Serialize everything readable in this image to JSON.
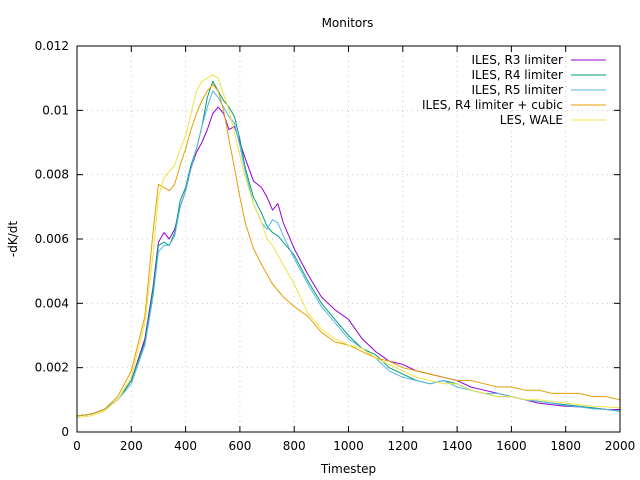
{
  "chart_data": {
    "type": "line",
    "title": "Monitors",
    "xlabel": "Timestep",
    "ylabel": "-dK/dt",
    "xlim": [
      0,
      2000
    ],
    "ylim": [
      0,
      0.012
    ],
    "xticks": [
      0,
      200,
      400,
      600,
      800,
      1000,
      1200,
      1400,
      1600,
      1800,
      2000
    ],
    "xtick_labels": [
      "0",
      "200",
      "400",
      "600",
      "800",
      "1000",
      "1200",
      "1400",
      "1600",
      "1800",
      "2000"
    ],
    "yticks": [
      0,
      0.002,
      0.004,
      0.006,
      0.008,
      0.01,
      0.012
    ],
    "ytick_labels": [
      "0",
      "0.002",
      "0.004",
      "0.006",
      "0.008",
      "0.01",
      "0.012"
    ],
    "grid": true,
    "legend_position": "top-right",
    "series": [
      {
        "name": "ILES, R3 limiter",
        "color": "#9400d3",
        "x": [
          0,
          50,
          100,
          150,
          200,
          250,
          280,
          300,
          320,
          340,
          360,
          380,
          400,
          420,
          440,
          460,
          480,
          500,
          520,
          540,
          560,
          580,
          600,
          620,
          650,
          680,
          700,
          720,
          740,
          760,
          800,
          850,
          900,
          950,
          1000,
          1050,
          1100,
          1150,
          1200,
          1250,
          1300,
          1350,
          1400,
          1450,
          1500,
          1550,
          1600,
          1650,
          1700,
          1750,
          1800,
          1850,
          1900,
          1950,
          2000
        ],
        "y": [
          0.0005,
          0.00055,
          0.0007,
          0.001,
          0.0016,
          0.0029,
          0.0045,
          0.0059,
          0.0062,
          0.006,
          0.0063,
          0.007,
          0.0075,
          0.0082,
          0.0087,
          0.009,
          0.0094,
          0.0099,
          0.0101,
          0.0099,
          0.0094,
          0.0095,
          0.009,
          0.0085,
          0.0078,
          0.0076,
          0.0073,
          0.0069,
          0.0071,
          0.0065,
          0.0057,
          0.0049,
          0.0042,
          0.0038,
          0.0035,
          0.0029,
          0.0025,
          0.0022,
          0.0021,
          0.0019,
          0.0018,
          0.0017,
          0.0016,
          0.0014,
          0.0013,
          0.0012,
          0.0011,
          0.001,
          0.0009,
          0.00085,
          0.0008,
          0.00078,
          0.00075,
          0.0007,
          0.0007
        ]
      },
      {
        "name": "ILES, R4 limiter",
        "color": "#009e73",
        "x": [
          0,
          50,
          100,
          150,
          200,
          250,
          280,
          300,
          320,
          340,
          360,
          380,
          400,
          420,
          440,
          460,
          480,
          500,
          520,
          540,
          560,
          580,
          600,
          620,
          650,
          680,
          700,
          720,
          740,
          760,
          800,
          850,
          900,
          950,
          1000,
          1050,
          1100,
          1150,
          1200,
          1250,
          1300,
          1350,
          1400,
          1450,
          1500,
          1550,
          1600,
          1650,
          1700,
          1750,
          1800,
          1850,
          1900,
          1950,
          2000
        ],
        "y": [
          0.0005,
          0.00055,
          0.0007,
          0.001,
          0.0016,
          0.0028,
          0.0044,
          0.0058,
          0.0059,
          0.0058,
          0.0062,
          0.0072,
          0.0076,
          0.0083,
          0.0088,
          0.0095,
          0.0104,
          0.0109,
          0.0106,
          0.0103,
          0.0101,
          0.0098,
          0.0091,
          0.0082,
          0.0073,
          0.0068,
          0.0064,
          0.0062,
          0.0061,
          0.0059,
          0.0055,
          0.0047,
          0.004,
          0.0035,
          0.003,
          0.0026,
          0.0024,
          0.002,
          0.0018,
          0.0016,
          0.0015,
          0.0016,
          0.0015,
          0.0013,
          0.0012,
          0.0011,
          0.0011,
          0.001,
          0.00095,
          0.0009,
          0.00085,
          0.0008,
          0.00075,
          0.0007,
          0.00065
        ]
      },
      {
        "name": "ILES, R5 limiter",
        "color": "#56b4e9",
        "x": [
          0,
          50,
          100,
          150,
          200,
          250,
          280,
          300,
          320,
          340,
          360,
          380,
          400,
          420,
          440,
          460,
          480,
          500,
          520,
          540,
          560,
          580,
          600,
          620,
          650,
          680,
          700,
          720,
          740,
          760,
          800,
          850,
          900,
          950,
          1000,
          1050,
          1100,
          1150,
          1200,
          1250,
          1300,
          1350,
          1400,
          1450,
          1500,
          1550,
          1600,
          1650,
          1700,
          1750,
          1800,
          1850,
          1900,
          1950,
          2000
        ],
        "y": [
          0.0005,
          0.00055,
          0.0007,
          0.001,
          0.0015,
          0.0027,
          0.0042,
          0.0056,
          0.0058,
          0.0058,
          0.0061,
          0.007,
          0.0075,
          0.0082,
          0.0088,
          0.0095,
          0.0101,
          0.0106,
          0.0104,
          0.0101,
          0.0098,
          0.0096,
          0.0089,
          0.0081,
          0.0071,
          0.0065,
          0.0063,
          0.0066,
          0.0065,
          0.0061,
          0.0054,
          0.0046,
          0.0039,
          0.0034,
          0.0029,
          0.0026,
          0.0023,
          0.0019,
          0.0017,
          0.0016,
          0.0015,
          0.0016,
          0.0014,
          0.0013,
          0.0012,
          0.0012,
          0.0011,
          0.001,
          0.00095,
          0.0009,
          0.00082,
          0.00078,
          0.00072,
          0.0007,
          0.00066
        ]
      },
      {
        "name": "ILES, R4 limiter + cubic",
        "color": "#e69f00",
        "x": [
          0,
          50,
          100,
          150,
          200,
          250,
          280,
          300,
          320,
          340,
          360,
          380,
          400,
          420,
          440,
          460,
          480,
          500,
          520,
          540,
          560,
          580,
          600,
          620,
          650,
          680,
          700,
          720,
          740,
          760,
          800,
          850,
          900,
          950,
          1000,
          1050,
          1100,
          1150,
          1200,
          1250,
          1300,
          1350,
          1400,
          1450,
          1500,
          1550,
          1600,
          1650,
          1700,
          1750,
          1800,
          1850,
          1900,
          1950,
          2000
        ],
        "y": [
          0.0005,
          0.00055,
          0.0007,
          0.0011,
          0.0019,
          0.0036,
          0.0062,
          0.0077,
          0.0076,
          0.0075,
          0.0077,
          0.0083,
          0.0088,
          0.0094,
          0.0099,
          0.0103,
          0.0106,
          0.0108,
          0.0106,
          0.01,
          0.0091,
          0.0082,
          0.0073,
          0.0065,
          0.0057,
          0.0052,
          0.0049,
          0.0046,
          0.0044,
          0.0042,
          0.0039,
          0.0036,
          0.0031,
          0.0028,
          0.0027,
          0.0025,
          0.0023,
          0.0022,
          0.002,
          0.0019,
          0.0018,
          0.0017,
          0.0016,
          0.0016,
          0.0015,
          0.0014,
          0.0014,
          0.0013,
          0.0013,
          0.0012,
          0.0012,
          0.0012,
          0.0011,
          0.0011,
          0.001
        ]
      },
      {
        "name": "LES, WALE",
        "color": "#f0e442",
        "x": [
          0,
          50,
          100,
          150,
          200,
          250,
          280,
          300,
          320,
          340,
          360,
          380,
          400,
          420,
          440,
          460,
          480,
          500,
          520,
          540,
          560,
          580,
          600,
          620,
          650,
          680,
          700,
          720,
          740,
          760,
          800,
          850,
          900,
          950,
          1000,
          1050,
          1100,
          1150,
          1200,
          1250,
          1300,
          1350,
          1400,
          1450,
          1500,
          1550,
          1600,
          1650,
          1700,
          1750,
          1800,
          1850,
          1900,
          1950,
          2000
        ],
        "y": [
          0.00045,
          0.0005,
          0.00065,
          0.001,
          0.0017,
          0.0034,
          0.0055,
          0.0073,
          0.0079,
          0.0081,
          0.0083,
          0.0088,
          0.0092,
          0.0099,
          0.0106,
          0.0109,
          0.011,
          0.0111,
          0.011,
          0.0105,
          0.01,
          0.0093,
          0.0086,
          0.0079,
          0.0071,
          0.0065,
          0.006,
          0.0058,
          0.0055,
          0.0052,
          0.0046,
          0.0037,
          0.0032,
          0.0029,
          0.0027,
          0.0026,
          0.0023,
          0.0021,
          0.0019,
          0.0017,
          0.0016,
          0.0015,
          0.0015,
          0.0013,
          0.0012,
          0.0011,
          0.0011,
          0.001,
          0.001,
          0.00095,
          0.0009,
          0.00085,
          0.0008,
          0.00078,
          0.00075
        ]
      }
    ]
  }
}
